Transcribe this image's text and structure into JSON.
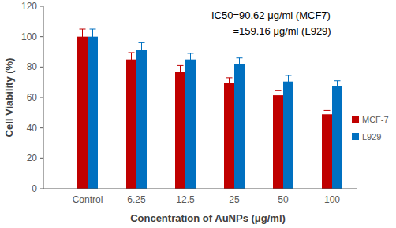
{
  "chart_data": {
    "type": "bar",
    "annotations": [
      "IC50=90.62 μg/ml (MCF7)",
      "=159.16 μg/ml (L929)"
    ],
    "x_label": "Concentration  of AuNPs (μg/ml)",
    "y_label": "Cell Viability (%)",
    "categories": [
      "Control",
      "6.25",
      "12.5",
      "25",
      "50",
      "100"
    ],
    "series": [
      {
        "name": "MCF-7",
        "color": "#c00000",
        "values": [
          100,
          85,
          77,
          69.5,
          61.5,
          49
        ],
        "errors": [
          5,
          4.5,
          4,
          3.5,
          3,
          2.5
        ]
      },
      {
        "name": "L929",
        "color": "#0070c0",
        "values": [
          100,
          91.5,
          85,
          82,
          70.5,
          67.5
        ],
        "errors": [
          5,
          4.5,
          4,
          4,
          4,
          3.5
        ]
      }
    ],
    "ylim": [
      0,
      120
    ],
    "yticks": [
      0,
      20,
      40,
      60,
      80,
      100,
      120
    ],
    "grid": false,
    "legend": "right"
  }
}
